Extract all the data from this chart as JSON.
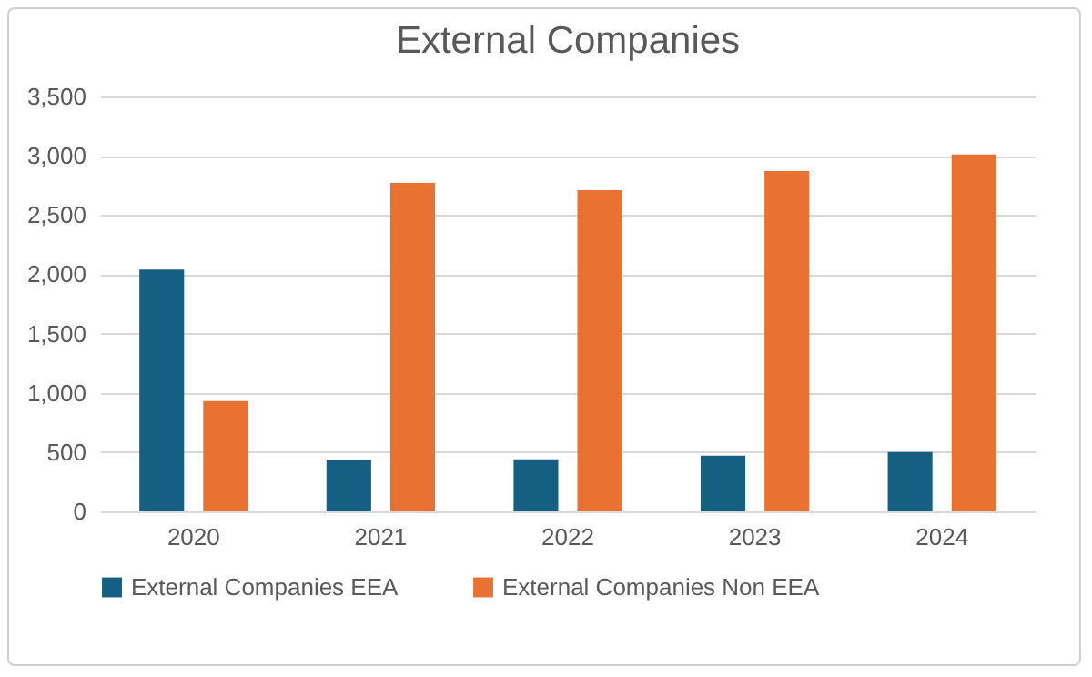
{
  "chart_data": {
    "type": "bar",
    "title": "External Companies",
    "categories": [
      "2020",
      "2021",
      "2022",
      "2023",
      "2024"
    ],
    "series": [
      {
        "name": "External Companies EEA",
        "color": "#155f82",
        "values": [
          2040,
          430,
          440,
          470,
          500
        ]
      },
      {
        "name": "External Companies Non EEA",
        "color": "#e97132",
        "values": [
          930,
          2770,
          2710,
          2870,
          3010
        ]
      }
    ],
    "ylim": [
      0,
      3500
    ],
    "yticks": [
      0,
      {
        "value": 500,
        "label": "500"
      },
      {
        "value": 1000,
        "label": "1,000"
      },
      {
        "value": 1500,
        "label": "1,500"
      },
      {
        "value": 2000,
        "label": "2,000"
      },
      {
        "value": 2500,
        "label": "2,500"
      },
      {
        "value": 3000,
        "label": "3,000"
      },
      {
        "value": 3500,
        "label": "3,500"
      }
    ],
    "grid": "y",
    "legend": "bottom"
  }
}
